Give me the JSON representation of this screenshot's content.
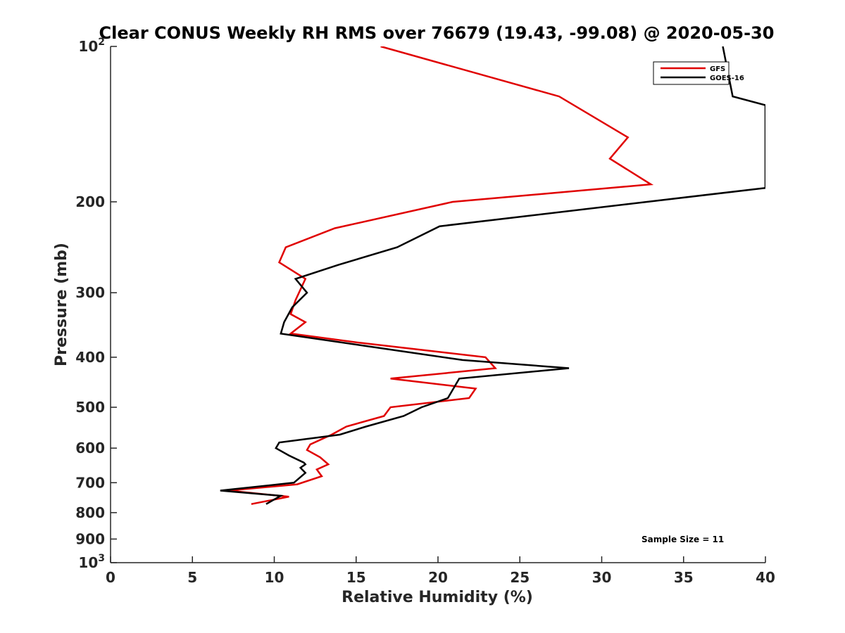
{
  "chart_data": {
    "type": "line",
    "title": "Clear CONUS Weekly RH RMS over 76679 (19.43, -99.08) @ 2020-05-30",
    "xlabel": "Relative Humidity (%)",
    "ylabel": "Pressure (mb)",
    "xlim": [
      0,
      40
    ],
    "ylim": [
      100,
      1000
    ],
    "y_scale": "log",
    "y_reversed": true,
    "x_ticks": [
      0,
      5,
      10,
      15,
      20,
      25,
      30,
      35,
      40
    ],
    "x_tick_labels": [
      "0",
      "5",
      "10",
      "15",
      "20",
      "25",
      "30",
      "35",
      "40"
    ],
    "y_ticks": [
      {
        "value": 100,
        "base": "10",
        "exp": "2"
      },
      {
        "value": 200,
        "label": "200"
      },
      {
        "value": 300,
        "label": "300"
      },
      {
        "value": 400,
        "label": "400"
      },
      {
        "value": 500,
        "label": "500"
      },
      {
        "value": 600,
        "label": "600"
      },
      {
        "value": 700,
        "label": "700"
      },
      {
        "value": 800,
        "label": "800"
      },
      {
        "value": 900,
        "label": "900"
      },
      {
        "value": 1000,
        "base": "10",
        "exp": "3"
      }
    ],
    "grid": false,
    "legend_position": "top-right",
    "annotation": "Sample Size = 11",
    "series": [
      {
        "name": "GFS",
        "color": "#e00000",
        "points": [
          [
            16.5,
            100
          ],
          [
            27.4,
            125
          ],
          [
            31.6,
            150
          ],
          [
            30.5,
            165
          ],
          [
            33.0,
            185
          ],
          [
            20.9,
            200
          ],
          [
            13.7,
            225
          ],
          [
            10.7,
            245
          ],
          [
            10.3,
            262
          ],
          [
            11.9,
            282
          ],
          [
            11.3,
            310
          ],
          [
            11.0,
            330
          ],
          [
            11.9,
            342
          ],
          [
            11.0,
            360
          ],
          [
            15.2,
            375
          ],
          [
            22.9,
            400
          ],
          [
            23.5,
            420
          ],
          [
            17.1,
            440
          ],
          [
            22.3,
            460
          ],
          [
            21.9,
            480
          ],
          [
            17.1,
            500
          ],
          [
            16.7,
            520
          ],
          [
            14.4,
            545
          ],
          [
            13.5,
            565
          ],
          [
            12.2,
            590
          ],
          [
            12.0,
            605
          ],
          [
            12.8,
            625
          ],
          [
            13.3,
            645
          ],
          [
            12.6,
            660
          ],
          [
            12.9,
            680
          ],
          [
            11.4,
            705
          ],
          [
            7.2,
            725
          ],
          [
            10.9,
            745
          ],
          [
            8.6,
            770
          ]
        ]
      },
      {
        "name": "GOES-16",
        "color": "#000000",
        "points": [
          [
            37.4,
            100
          ],
          [
            38.0,
            125
          ],
          [
            40.0,
            130
          ],
          [
            40.0,
            188
          ],
          [
            20.1,
            223
          ],
          [
            17.5,
            245
          ],
          [
            13.9,
            265
          ],
          [
            11.3,
            282
          ],
          [
            12.0,
            300
          ],
          [
            11.1,
            320
          ],
          [
            10.6,
            342
          ],
          [
            10.4,
            360
          ],
          [
            15.5,
            380
          ],
          [
            21.5,
            405
          ],
          [
            28.0,
            420
          ],
          [
            21.3,
            440
          ],
          [
            20.6,
            480
          ],
          [
            19.0,
            500
          ],
          [
            17.9,
            520
          ],
          [
            15.6,
            545
          ],
          [
            14.0,
            565
          ],
          [
            10.3,
            585
          ],
          [
            10.1,
            600
          ],
          [
            10.9,
            620
          ],
          [
            11.8,
            640
          ],
          [
            11.9,
            645
          ],
          [
            11.6,
            655
          ],
          [
            11.9,
            670
          ],
          [
            11.2,
            700
          ],
          [
            6.7,
            725
          ],
          [
            10.4,
            742
          ],
          [
            9.5,
            770
          ]
        ]
      }
    ]
  }
}
